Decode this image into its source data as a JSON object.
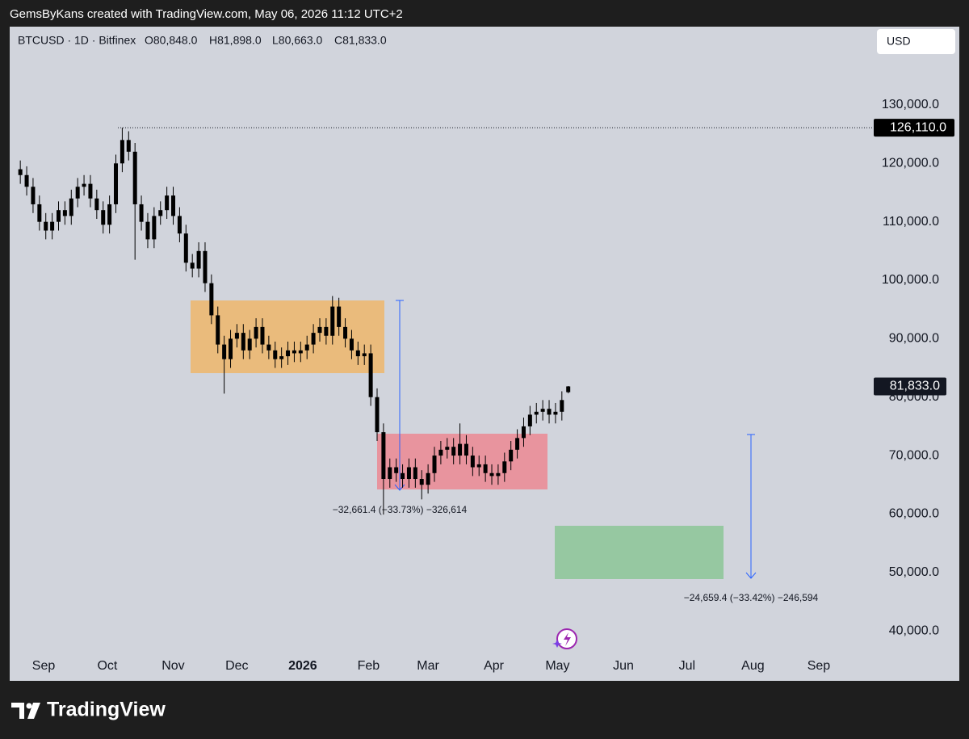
{
  "header": "GemsByKans created with TradingView.com, May 06, 2026 11:12 UTC+2",
  "footer": "TradingView",
  "chart_data": {
    "type": "candlestick",
    "legend": [
      "BTCUSD · 1D · Bitfinex",
      "O80,848.0",
      "H81,898.0",
      "L80,663.0",
      "C81,833.0"
    ],
    "currency": "USD",
    "color": "#000000",
    "grid": false,
    "x_labels": [
      "Sep",
      "Oct",
      "Nov",
      "Dec",
      "2026",
      "Feb",
      "Mar",
      "Apr",
      "May",
      "Jun",
      "Jul",
      "Aug",
      "Sep"
    ],
    "ylim": [
      36700,
      143400
    ],
    "yticks": [
      {
        "value": 40000,
        "label": "40,000.0"
      },
      {
        "value": 50000,
        "label": "50,000.0"
      },
      {
        "value": 60000,
        "label": "60,000.0"
      },
      {
        "value": 70000,
        "label": "70,000.0"
      },
      {
        "value": 80000,
        "label": "80,000.0"
      },
      {
        "value": 90000,
        "label": "90,000.0"
      },
      {
        "value": 100000,
        "label": "100,000.0"
      },
      {
        "value": 110000,
        "label": "110,000.0"
      },
      {
        "value": 120000,
        "label": "120,000.0"
      },
      {
        "value": 130000,
        "label": "130,000.0"
      }
    ],
    "high_marker": {
      "value": 126110,
      "label": "126,110.0"
    },
    "last_price": {
      "value": 81833,
      "label": "81,833.0"
    },
    "annotations": [
      "−32,661.4 (−33.73%) −326,614",
      "−24,659.4 (−33.42%) −246,594"
    ],
    "open": [
      119000,
      118000,
      116000,
      113000,
      110000,
      108500,
      110000,
      112000,
      111000,
      114000,
      116000,
      116500,
      114000,
      112000,
      109500,
      113000,
      120000,
      124000,
      122000,
      113000,
      110000,
      107000,
      111000,
      112000,
      114500,
      111000,
      108000,
      103000,
      102000,
      105000,
      99500,
      94000,
      89000,
      86500,
      90000,
      91000,
      88000,
      90000,
      92000,
      89000,
      88000,
      86500,
      87000,
      88000,
      87500,
      88000,
      89000,
      91000,
      92000,
      90500,
      95500,
      92000,
      90000,
      88000,
      87000,
      87500,
      80000,
      74000,
      66000,
      68000,
      67000,
      66000,
      68000,
      66000,
      65000,
      67000,
      70000,
      71000,
      71500,
      70000,
      72000,
      70000,
      68000,
      68500,
      67000,
      66500,
      67000,
      69000,
      71000,
      73000,
      75000,
      77000,
      77500,
      78000,
      77000,
      77500,
      80848
    ],
    "high": [
      120500,
      119500,
      117500,
      114500,
      111500,
      111500,
      113500,
      113500,
      115500,
      117500,
      118000,
      118000,
      115500,
      113500,
      114500,
      121500,
      126110,
      125500,
      123500,
      114500,
      111500,
      112500,
      113500,
      116000,
      116000,
      112500,
      109500,
      104500,
      106500,
      106500,
      101000,
      95500,
      90500,
      91500,
      92500,
      92500,
      91500,
      93500,
      93500,
      90500,
      89500,
      88500,
      89500,
      89500,
      89500,
      90500,
      92500,
      93500,
      93500,
      97300,
      97000,
      93500,
      91500,
      89500,
      89000,
      89000,
      81500,
      75500,
      69500,
      69500,
      68500,
      69500,
      69500,
      67500,
      68500,
      71500,
      72500,
      73000,
      73000,
      75500,
      73500,
      71500,
      70000,
      70000,
      68500,
      68500,
      70500,
      72500,
      74500,
      76500,
      78500,
      79000,
      79500,
      79500,
      79000,
      81000,
      81898
    ],
    "low": [
      116500,
      114500,
      111500,
      108500,
      107000,
      107000,
      108500,
      109500,
      109500,
      112500,
      114500,
      112500,
      110500,
      108000,
      108000,
      111500,
      118500,
      120500,
      103500,
      108500,
      105500,
      105500,
      109500,
      110500,
      109500,
      106500,
      101500,
      100500,
      100500,
      98000,
      92500,
      87500,
      80600,
      85000,
      88500,
      86500,
      86500,
      88500,
      87500,
      86500,
      85000,
      85000,
      85500,
      86000,
      86000,
      86500,
      87500,
      89500,
      89000,
      89000,
      90500,
      88500,
      86500,
      85500,
      85500,
      78500,
      72500,
      59900,
      64500,
      65500,
      64500,
      64500,
      64500,
      62500,
      63500,
      65500,
      68500,
      69500,
      68500,
      68500,
      68500,
      66500,
      66500,
      65500,
      65000,
      65000,
      65500,
      67500,
      69500,
      71500,
      73500,
      75500,
      76000,
      75500,
      75500,
      76000,
      80663
    ],
    "close": [
      118000,
      116000,
      113000,
      110000,
      108500,
      110000,
      112000,
      111000,
      114000,
      116000,
      116500,
      114000,
      112000,
      109500,
      113000,
      120000,
      124000,
      122000,
      113000,
      110000,
      107000,
      111000,
      112000,
      114500,
      111000,
      108000,
      103000,
      102000,
      105000,
      99500,
      94000,
      89000,
      86500,
      90000,
      91000,
      88000,
      90000,
      92000,
      89000,
      88000,
      86500,
      87000,
      88000,
      87500,
      88000,
      89000,
      91000,
      92000,
      90500,
      95500,
      92000,
      90000,
      88000,
      87000,
      87500,
      80000,
      74000,
      66000,
      68000,
      67000,
      66000,
      68000,
      66000,
      65000,
      67000,
      70000,
      71000,
      71500,
      70000,
      72000,
      70000,
      68000,
      68500,
      67000,
      66500,
      67000,
      69000,
      71000,
      73000,
      75000,
      77000,
      77500,
      78000,
      77000,
      77500,
      79500,
      81833
    ]
  }
}
